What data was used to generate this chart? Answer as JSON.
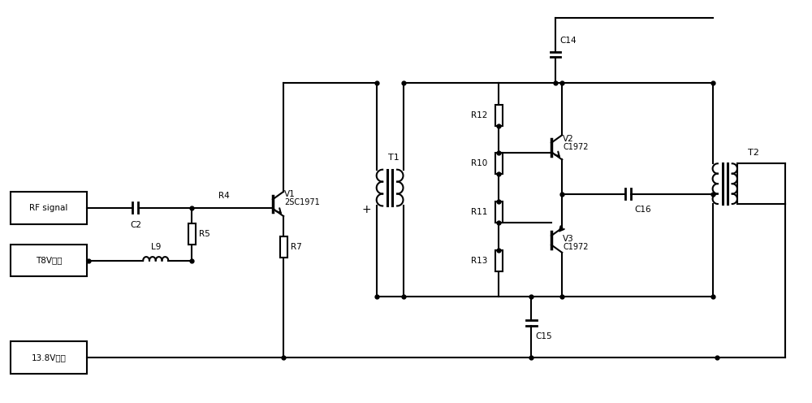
{
  "bg_color": "#ffffff",
  "line_color": "#000000",
  "line_width": 1.5,
  "fig_width": 10.0,
  "fig_height": 4.96,
  "labels": {
    "RF_signal": "RF signal",
    "T8V": "T8V电源",
    "13V8": "13.8V电源",
    "C2": "C2",
    "R4": "R4",
    "R5": "R5",
    "L9": "L9",
    "V1": "V1",
    "V1_type": "2SC1971",
    "R7": "R7",
    "T1": "T1",
    "R12": "R12",
    "R10": "R10",
    "R11": "R11",
    "R13": "R13",
    "C14": "C14",
    "C15": "C15",
    "C16": "C16",
    "V2": "V2",
    "V2_type": "C1972",
    "V3": "V3",
    "V3_type": "C1972",
    "T2": "T2"
  }
}
